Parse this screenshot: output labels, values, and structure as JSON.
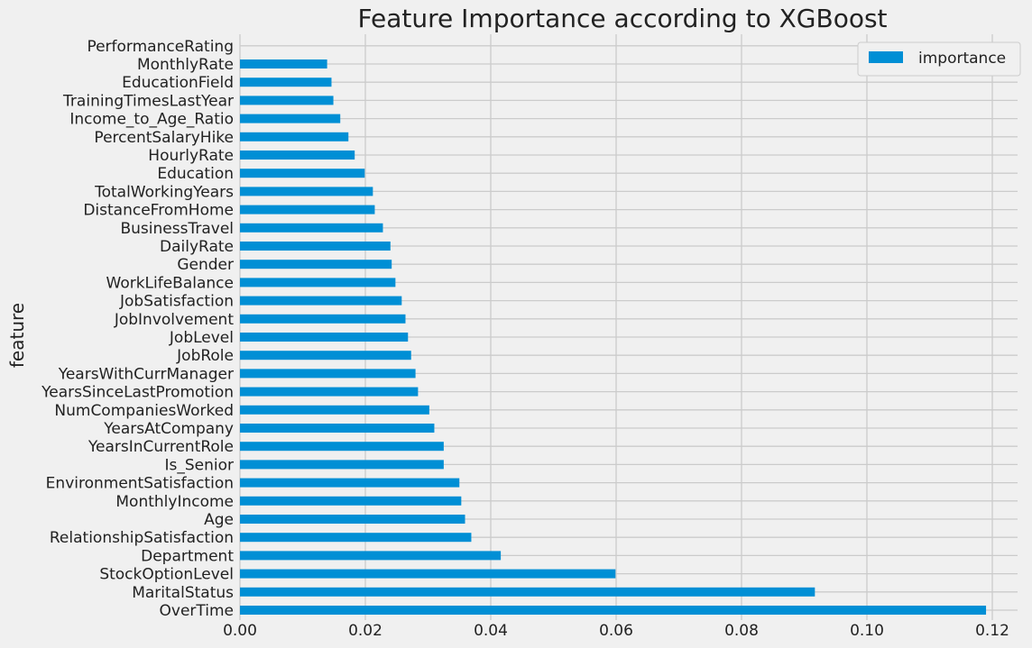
{
  "chart_data": {
    "type": "bar",
    "orientation": "horizontal",
    "title": "Feature Importance according to XGBoost",
    "xlabel": "",
    "ylabel": "feature",
    "xlim": [
      0,
      0.1236
    ],
    "xticks": [
      0.0,
      0.02,
      0.04,
      0.06,
      0.08,
      0.1,
      0.12
    ],
    "xtick_labels": [
      "0.00",
      "0.02",
      "0.04",
      "0.06",
      "0.08",
      "0.10",
      "0.12"
    ],
    "grid": true,
    "legend": {
      "placement": "top-right",
      "entries": [
        "importance"
      ]
    },
    "categories": [
      "OverTime",
      "MaritalStatus",
      "StockOptionLevel",
      "Department",
      "RelationshipSatisfaction",
      "Age",
      "MonthlyIncome",
      "EnvironmentSatisfaction",
      "Is_Senior",
      "YearsInCurrentRole",
      "YearsAtCompany",
      "NumCompaniesWorked",
      "YearsSinceLastPromotion",
      "YearsWithCurrManager",
      "JobRole",
      "JobLevel",
      "JobInvolvement",
      "JobSatisfaction",
      "WorkLifeBalance",
      "Gender",
      "DailyRate",
      "BusinessTravel",
      "DistanceFromHome",
      "TotalWorkingYears",
      "Education",
      "HourlyRate",
      "PercentSalaryHike",
      "Income_to_Age_Ratio",
      "TrainingTimesLastYear",
      "EducationField",
      "MonthlyRate",
      "PerformanceRating"
    ],
    "series": [
      {
        "name": "importance",
        "values": [
          0.119,
          0.0917,
          0.0599,
          0.0416,
          0.0369,
          0.0359,
          0.0353,
          0.035,
          0.0325,
          0.0325,
          0.031,
          0.0302,
          0.0284,
          0.028,
          0.0273,
          0.0268,
          0.0264,
          0.0258,
          0.0248,
          0.0242,
          0.024,
          0.0228,
          0.0215,
          0.0212,
          0.0199,
          0.0183,
          0.0173,
          0.016,
          0.0149,
          0.0146,
          0.0139,
          0.0
        ]
      }
    ]
  },
  "colors": {
    "bar": "#008fd5",
    "grid": "#cbcbcb",
    "background": "#f0f0f0",
    "text": "#222222"
  }
}
